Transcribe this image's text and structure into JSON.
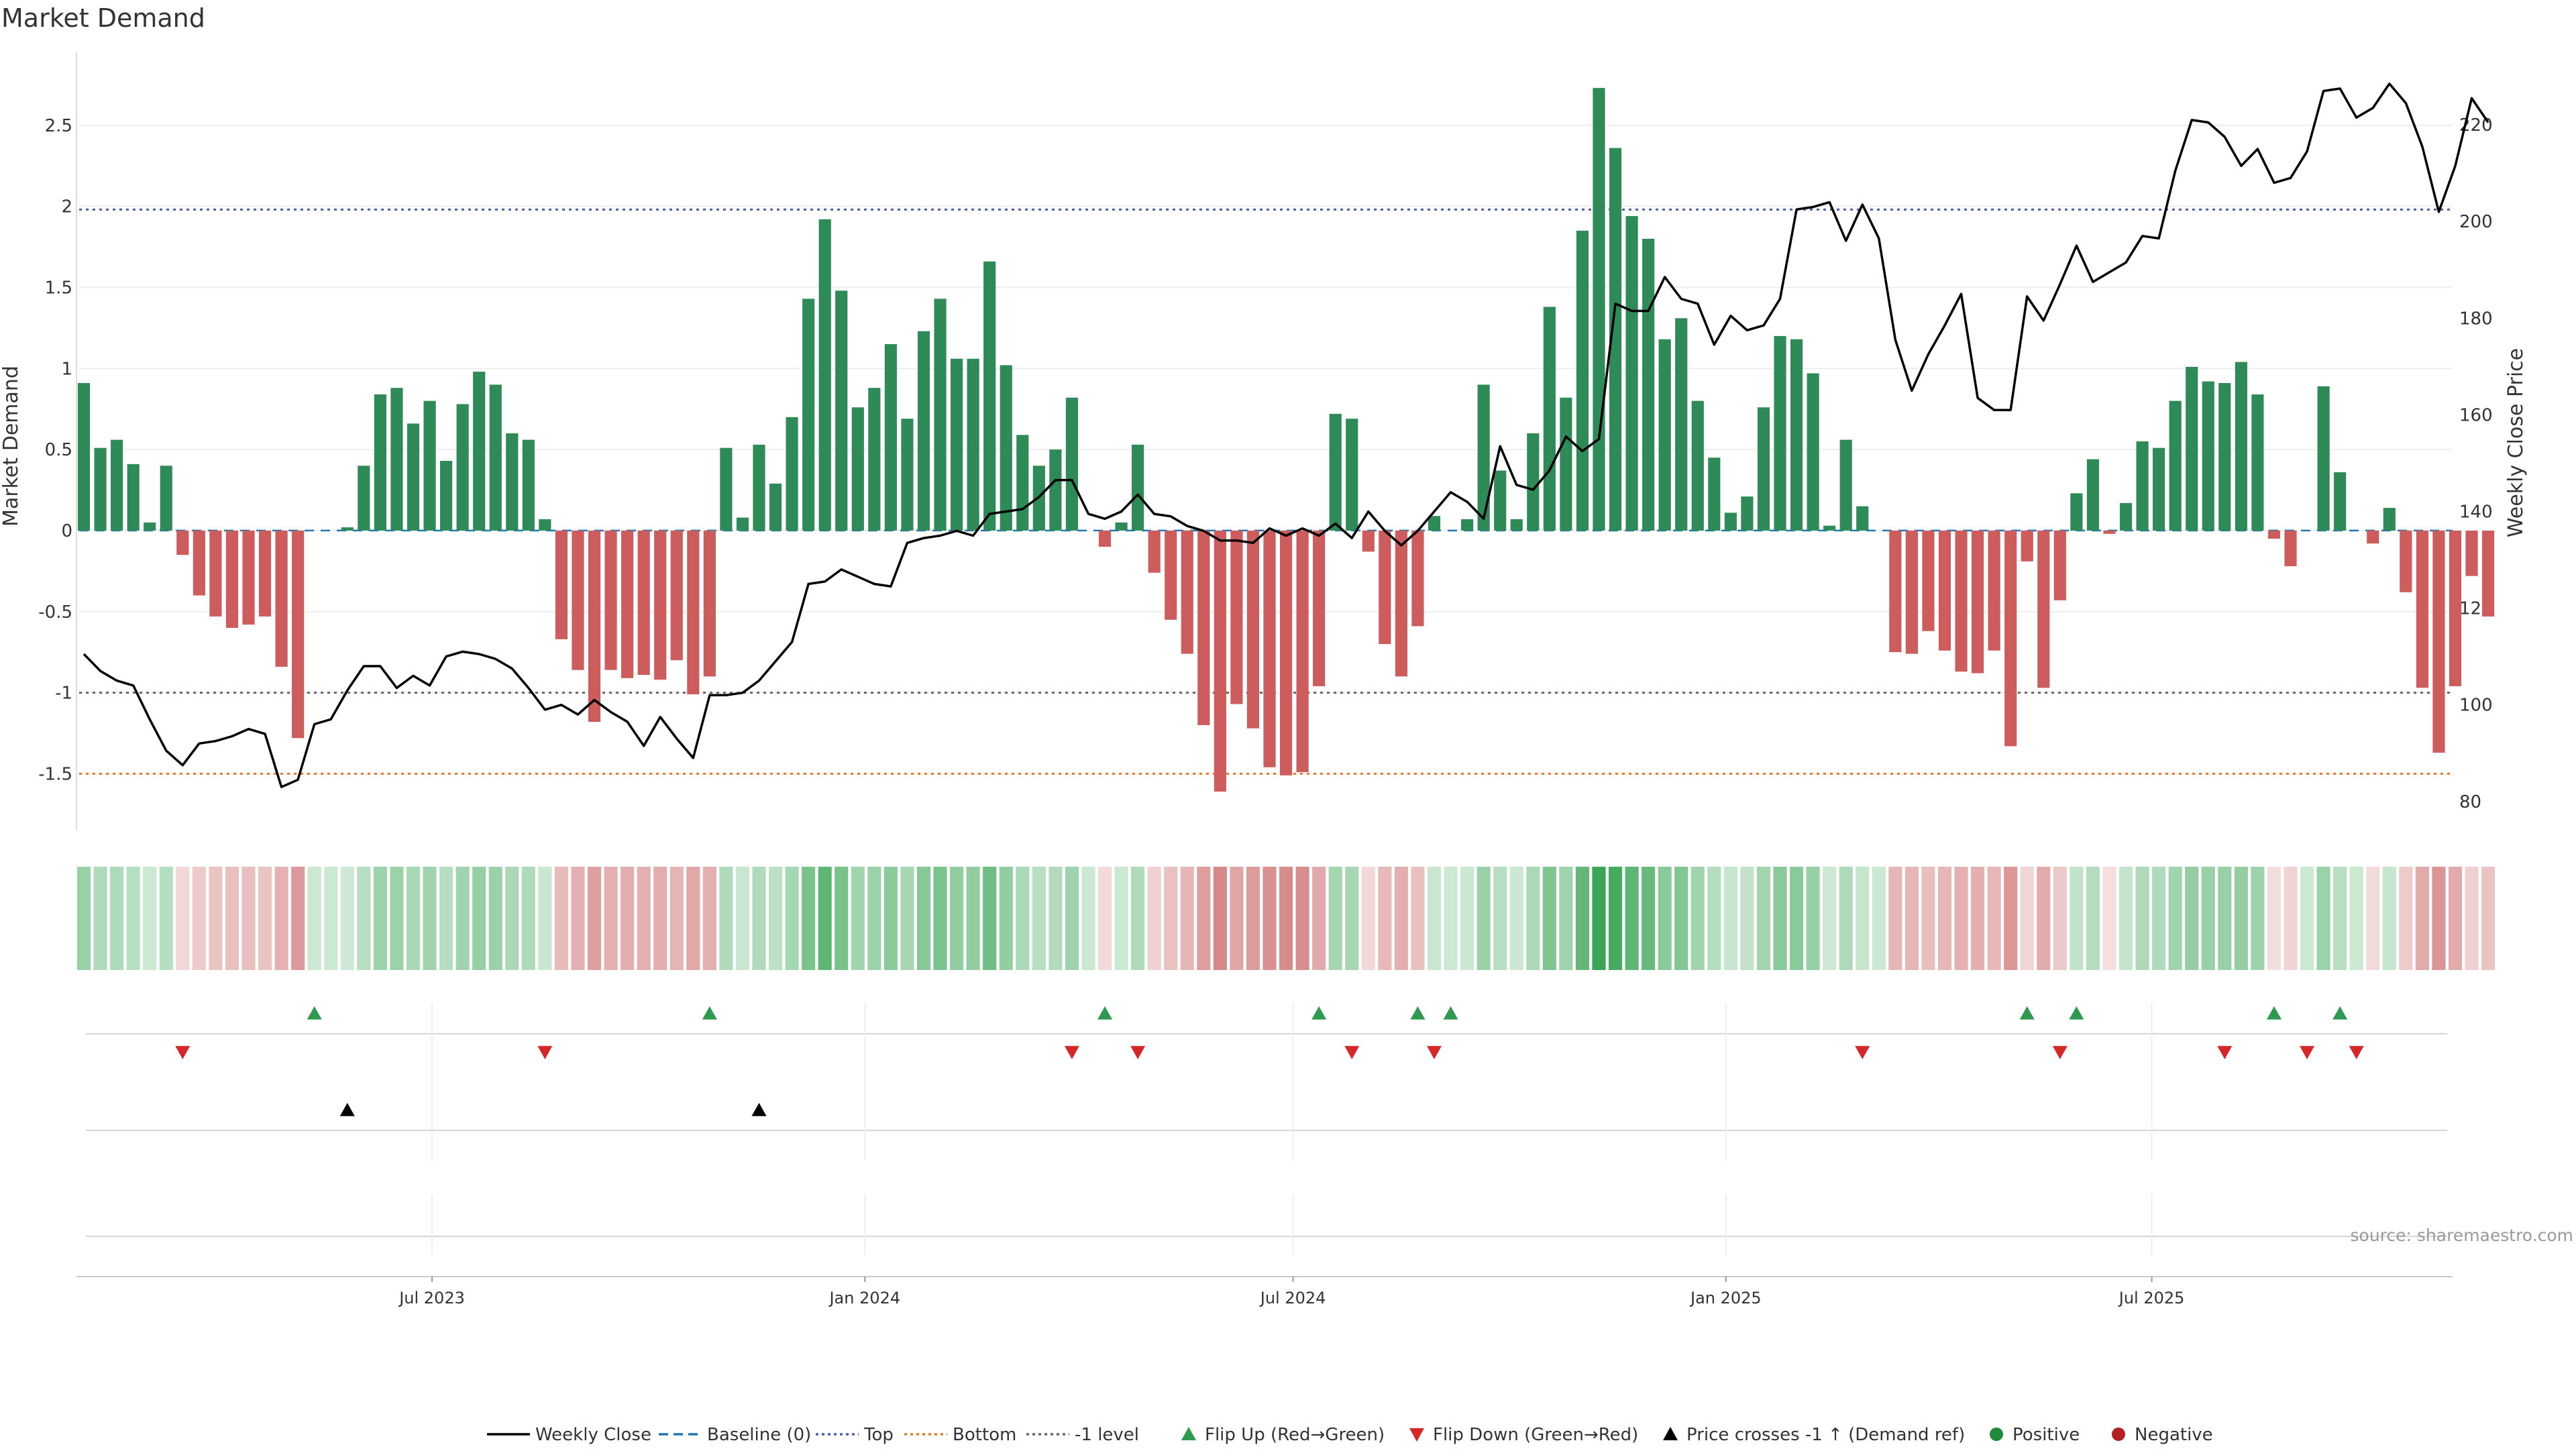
{
  "chart_data": {
    "type": "bar",
    "title": "Market Demand",
    "ylabel_left": "Market Demand",
    "ylabel_right": "Weekly Close Price",
    "source": "source: sharemaestro.com",
    "ylim": [
      -1.85,
      2.95
    ],
    "y2lim": [
      74,
      235
    ],
    "yticks": [
      -1.5,
      -1,
      -0.5,
      0,
      0.5,
      1,
      1.5,
      2,
      2.5
    ],
    "ytick_labels": [
      "-1.5",
      "-1",
      "-0.5",
      "0",
      "0.5",
      "1",
      "1.5",
      "2",
      "2.5"
    ],
    "y2ticks": [
      80,
      100,
      120,
      140,
      160,
      180,
      200,
      220
    ],
    "y2tick_labels": [
      "80",
      "100",
      "120",
      "140",
      "160",
      "180",
      "200",
      "220"
    ],
    "x_start": "2023-02-03",
    "x_step_days": 7,
    "x_range_days": [
      -2,
      1008
    ],
    "xticks": [
      {
        "label": "Jul 2023",
        "day": 148
      },
      {
        "label": "Jan 2024",
        "day": 332
      },
      {
        "label": "Jul 2024",
        "day": 514
      },
      {
        "label": "Jan 2025",
        "day": 698
      },
      {
        "label": "Jul 2025",
        "day": 879
      }
    ],
    "reference_lines": {
      "top": 1.98,
      "bottom": -1.5,
      "minus1": -1.0
    },
    "demand": [
      0.91,
      0.51,
      0.56,
      0.41,
      0.05,
      0.4,
      -0.15,
      -0.4,
      -0.53,
      -0.6,
      -0.58,
      -0.53,
      -0.84,
      -1.28,
      0.0,
      0.0,
      0.02,
      0.4,
      0.84,
      0.88,
      0.66,
      0.8,
      0.43,
      0.78,
      0.98,
      0.9,
      0.6,
      0.56,
      0.07,
      -0.67,
      -0.86,
      -1.18,
      -0.86,
      -0.91,
      -0.89,
      -0.92,
      -0.8,
      -1.01,
      -0.9,
      0.51,
      0.08,
      0.53,
      0.29,
      0.7,
      1.43,
      1.92,
      1.48,
      0.76,
      0.88,
      1.15,
      0.69,
      1.23,
      1.43,
      1.06,
      1.06,
      1.66,
      1.02,
      0.59,
      0.4,
      0.5,
      0.82,
      0.0,
      -0.1,
      0.05,
      0.53,
      -0.26,
      -0.55,
      -0.76,
      -1.2,
      -1.61,
      -1.07,
      -1.22,
      -1.46,
      -1.51,
      -1.49,
      -0.96,
      0.72,
      0.69,
      -0.13,
      -0.7,
      -0.9,
      -0.59,
      0.09,
      0.0,
      0.07,
      0.9,
      0.37,
      0.07,
      0.6,
      1.38,
      0.82,
      1.85,
      2.73,
      2.36,
      1.94,
      1.8,
      1.18,
      1.31,
      0.8,
      0.45,
      0.11,
      0.21,
      0.76,
      1.2,
      1.18,
      0.97,
      0.03,
      0.56,
      0.15,
      0.0,
      -0.75,
      -0.76,
      -0.62,
      -0.74,
      -0.87,
      -0.88,
      -0.74,
      -1.33,
      -0.19,
      -0.97,
      -0.43,
      0.23,
      0.44,
      -0.02,
      0.17,
      0.55,
      0.51,
      0.8,
      1.01,
      0.92,
      0.91,
      1.04,
      0.84,
      -0.05,
      -0.22,
      0.0,
      0.89,
      0.36,
      0.0,
      -0.08,
      0.14,
      -0.38,
      -0.97,
      -1.37,
      -0.96,
      -0.28,
      -0.53
    ],
    "close": [
      110.5,
      107.0,
      105.0,
      104.0,
      97.0,
      90.5,
      87.5,
      92.0,
      92.5,
      93.5,
      95.0,
      94.0,
      83.0,
      84.5,
      96.0,
      97.0,
      103.0,
      108.0,
      108.0,
      103.5,
      106.0,
      104.0,
      110.0,
      111.0,
      110.5,
      109.5,
      107.5,
      103.5,
      99.0,
      100.0,
      98.0,
      101.0,
      98.5,
      96.5,
      91.5,
      97.5,
      93.0,
      89.0,
      102.0,
      102.0,
      102.5,
      105.0,
      109.0,
      113.0,
      125.0,
      125.5,
      128.0,
      126.5,
      125.0,
      124.5,
      133.5,
      134.5,
      135.0,
      136.0,
      135.0,
      139.5,
      140.0,
      140.5,
      143.0,
      146.5,
      146.5,
      139.5,
      138.5,
      140.0,
      143.5,
      139.5,
      139.0,
      137.0,
      136.0,
      134.0,
      134.0,
      133.5,
      136.5,
      135.0,
      136.5,
      135.0,
      137.5,
      134.5,
      140.0,
      136.0,
      133.0,
      136.0,
      140.0,
      144.0,
      142.0,
      138.5,
      153.5,
      145.5,
      144.5,
      148.5,
      155.5,
      152.5,
      155.0,
      183.0,
      181.5,
      181.5,
      188.5,
      184.0,
      183.0,
      174.5,
      180.5,
      177.5,
      178.5,
      184.0,
      202.5,
      203.0,
      204.0,
      196.0,
      203.5,
      196.5,
      175.5,
      165.0,
      172.5,
      178.5,
      185.0,
      163.5,
      161.0,
      161.0,
      184.5,
      179.5,
      187.0,
      195.0,
      187.5,
      189.5,
      191.5,
      197.0,
      196.5,
      210.5,
      221.0,
      220.5,
      217.5,
      211.5,
      215.0,
      208.0,
      209.0,
      214.5,
      227.0,
      227.5,
      221.5,
      223.5,
      228.5,
      224.5,
      215.5,
      202.0,
      211.5,
      225.5,
      220.5
    ],
    "flip_up_weeks": [
      14,
      38,
      62,
      75,
      81,
      83,
      118,
      121,
      133,
      137
    ],
    "flip_down_weeks": [
      6,
      28,
      60,
      64,
      77,
      82,
      108,
      120,
      130,
      135,
      138
    ],
    "price_cross_weeks": [
      16,
      41
    ],
    "legend": [
      "Weekly Close",
      "Baseline (0)",
      "Top",
      "Bottom",
      "-1 level",
      "Flip Up (Red→Green)",
      "Flip Down (Green→Red)",
      "Price crosses -1 ↑ (Demand ref)",
      "Positive",
      "Negative"
    ],
    "colors": {
      "positive": "#2e8b57",
      "negative": "#cd5c5c",
      "line": "#000000",
      "baseline": "#1f77b4",
      "top": "#4b5fa8",
      "bottom": "#e07b28",
      "minus1": "#666666",
      "flip_up": "#2e9a4f",
      "flip_down": "#d62728",
      "price_cross": "#000000",
      "legend_positive": "#1f8a3a",
      "legend_negative": "#b22222"
    }
  }
}
